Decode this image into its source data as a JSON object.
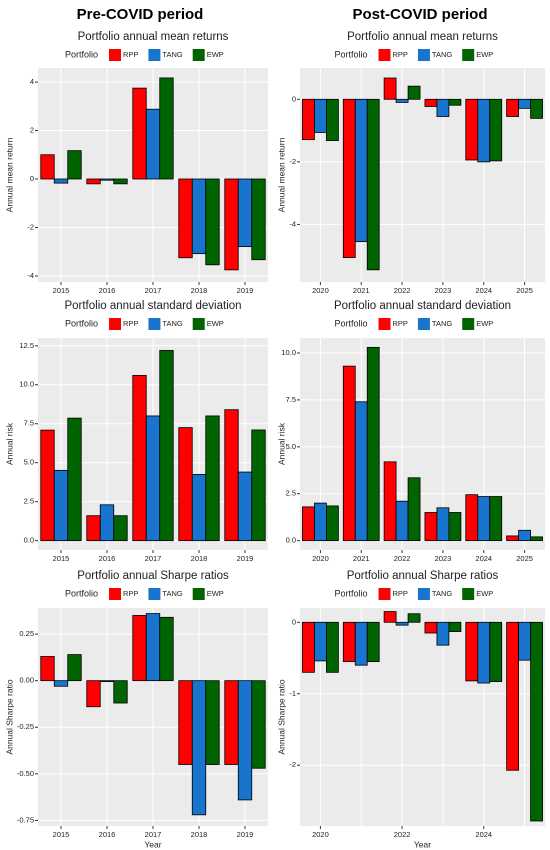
{
  "headers": {
    "left": "Pre-COVID period",
    "right": "Post-COVID period"
  },
  "chart_data": [
    {
      "type": "bar",
      "title": "Portfolio annual mean returns",
      "legend_title": "Portfolio",
      "ylabel": "Annual  mean return",
      "categories": [
        "2015",
        "2016",
        "2017",
        "2018",
        "2019"
      ],
      "series": [
        {
          "name": "RPP",
          "color": "#ff0000",
          "values": [
            1.0,
            -0.2,
            3.75,
            -3.25,
            -3.75
          ]
        },
        {
          "name": "TANG",
          "color": "#1874cd",
          "values": [
            -0.17,
            -0.05,
            2.88,
            -3.08,
            -2.79
          ]
        },
        {
          "name": "EWP",
          "color": "#006400",
          "values": [
            1.17,
            -0.2,
            4.17,
            -3.54,
            -3.33
          ]
        }
      ],
      "ylim": [
        -4.25,
        4.58
      ],
      "yticks": [
        -4,
        -2,
        0,
        2,
        4
      ],
      "grid": true
    },
    {
      "type": "bar",
      "title": "Portfolio annual mean returns",
      "legend_title": "Portfolio",
      "ylabel": "Annual  mean return",
      "categories": [
        "2020",
        "2021",
        "2022",
        "2023",
        "2024",
        "2025"
      ],
      "series": [
        {
          "name": "RPP",
          "color": "#ff0000",
          "values": [
            -1.29,
            -5.06,
            0.68,
            -0.23,
            -1.94,
            -0.55
          ]
        },
        {
          "name": "TANG",
          "color": "#1874cd",
          "values": [
            -1.06,
            -4.55,
            -0.1,
            -0.55,
            -2.0,
            -0.29
          ]
        },
        {
          "name": "EWP",
          "color": "#006400",
          "values": [
            -1.32,
            -5.45,
            0.42,
            -0.19,
            -1.97,
            -0.61
          ]
        }
      ],
      "ylim": [
        -5.84,
        1.0
      ],
      "yticks": [
        -4,
        -2,
        0
      ],
      "grid": true
    },
    {
      "type": "bar",
      "title": "Portfolio annual standard deviation",
      "legend_title": "Portfolio",
      "ylabel": "Annual risk",
      "categories": [
        "2015",
        "2016",
        "2017",
        "2018",
        "2019"
      ],
      "series": [
        {
          "name": "RPP",
          "color": "#ff0000",
          "values": [
            7.09,
            1.6,
            10.6,
            7.25,
            8.4
          ]
        },
        {
          "name": "TANG",
          "color": "#1874cd",
          "values": [
            4.51,
            2.3,
            8.0,
            4.25,
            4.4
          ]
        },
        {
          "name": "EWP",
          "color": "#006400",
          "values": [
            7.86,
            1.6,
            12.2,
            8.0,
            7.1
          ]
        }
      ],
      "ylim": [
        -0.6,
        13
      ],
      "yticks": [
        {
          "value": 0,
          "label": "0.0"
        },
        2.5,
        {
          "value": 5,
          "label": "5.0"
        },
        7.5,
        {
          "value": 10,
          "label": "10.0"
        },
        12.5
      ],
      "grid": true
    },
    {
      "type": "bar",
      "title": "Portfolio annual standard deviation",
      "legend_title": "Portfolio",
      "ylabel": "Annual risk",
      "categories": [
        "2020",
        "2021",
        "2022",
        "2023",
        "2024",
        "2025"
      ],
      "series": [
        {
          "name": "RPP",
          "color": "#ff0000",
          "values": [
            1.8,
            9.3,
            4.2,
            1.5,
            2.45,
            0.25
          ]
        },
        {
          "name": "TANG",
          "color": "#1874cd",
          "values": [
            2.0,
            7.4,
            2.1,
            1.75,
            2.35,
            0.55
          ]
        },
        {
          "name": "EWP",
          "color": "#006400",
          "values": [
            1.85,
            10.3,
            3.35,
            1.5,
            2.35,
            0.2
          ]
        }
      ],
      "ylim": [
        -0.5,
        10.8
      ],
      "yticks": [
        {
          "value": 0,
          "label": "0.0"
        },
        2.5,
        {
          "value": 5,
          "label": "5.0"
        },
        7.5,
        {
          "value": 10,
          "label": "10.0"
        }
      ],
      "grid": true
    },
    {
      "type": "bar",
      "title": "Portfolio annual Sharpe ratios",
      "legend_title": "Portfolio",
      "ylabel": "Annual Sharpe ratio",
      "xlabel": "Year",
      "categories": [
        "2015",
        "2016",
        "2017",
        "2018",
        "2019"
      ],
      "series": [
        {
          "name": "RPP",
          "color": "#ff0000",
          "values": [
            0.13,
            -0.14,
            0.35,
            -0.45,
            -0.45
          ]
        },
        {
          "name": "TANG",
          "color": "#1874cd",
          "values": [
            -0.03,
            -0.005,
            0.36,
            -0.72,
            -0.64
          ]
        },
        {
          "name": "EWP",
          "color": "#006400",
          "values": [
            0.14,
            -0.12,
            0.34,
            -0.45,
            -0.47
          ]
        }
      ],
      "ylim": [
        -0.78,
        0.39
      ],
      "yticks": [
        {
          "value": -0.75,
          "label": "-0.75"
        },
        {
          "value": -0.5,
          "label": "-0.50"
        },
        -0.25,
        {
          "value": 0,
          "label": "0.00"
        },
        0.25
      ],
      "grid": true
    },
    {
      "type": "bar",
      "title": "Portfolio annual Sharpe ratios",
      "legend_title": "Portfolio",
      "ylabel": "Annual Sharpe ratio",
      "xlabel": "Year",
      "categories": [
        "2020",
        null,
        "2022",
        null,
        "2024",
        null
      ],
      "series": [
        {
          "name": "RPP",
          "color": "#ff0000",
          "values": [
            -0.7,
            -0.55,
            0.15,
            -0.15,
            -0.82,
            -2.07
          ]
        },
        {
          "name": "TANG",
          "color": "#1874cd",
          "values": [
            -0.54,
            -0.6,
            -0.04,
            -0.32,
            -0.85,
            -0.53
          ]
        },
        {
          "name": "EWP",
          "color": "#006400",
          "values": [
            -0.7,
            -0.55,
            0.12,
            -0.13,
            -0.83,
            -2.78
          ]
        }
      ],
      "ylim": [
        -2.85,
        0.2
      ],
      "yticks": [
        -2,
        -1,
        0
      ],
      "grid": true
    }
  ]
}
